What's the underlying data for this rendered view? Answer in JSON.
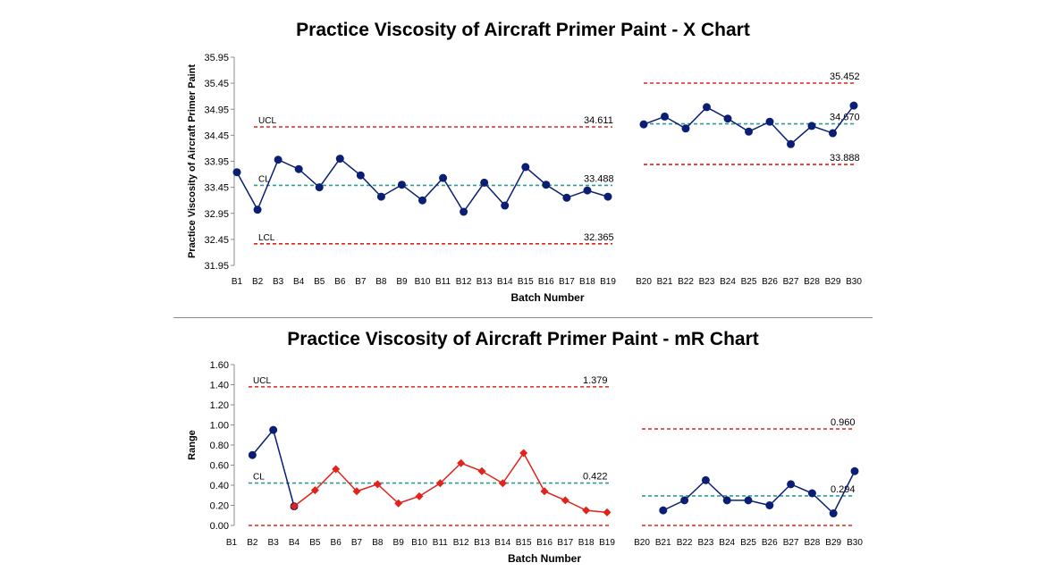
{
  "chart_data": [
    {
      "type": "line",
      "title": "Practice  Viscosity  of Aircraft Primer Paint  - X Chart",
      "xlabel": "Batch  Number",
      "ylabel": "Practice  Viscosity of Aircraft Primer Paint",
      "ylim": [
        31.95,
        35.95
      ],
      "yticks": [
        "31.95",
        "32.45",
        "32.95",
        "33.45",
        "33.95",
        "34.45",
        "34.95",
        "35.45",
        "35.95"
      ],
      "categories": [
        "B1",
        "B2",
        "B3",
        "B4",
        "B5",
        "B6",
        "B7",
        "B8",
        "B9",
        "B10",
        "B11",
        "B12",
        "B13",
        "B14",
        "B15",
        "B16",
        "B17",
        "B18",
        "B19",
        "B20",
        "B21",
        "B22",
        "B23",
        "B24",
        "B25",
        "B26",
        "B27",
        "B28",
        "B29",
        "B30"
      ],
      "series": [
        {
          "segment": 1,
          "x": [
            "B1",
            "B2",
            "B3",
            "B4",
            "B5",
            "B6",
            "B7",
            "B8",
            "B9",
            "B10",
            "B11",
            "B12",
            "B13",
            "B14",
            "B15",
            "B16",
            "B17",
            "B18",
            "B19"
          ],
          "values": [
            33.74,
            33.02,
            33.98,
            33.8,
            33.45,
            34.0,
            33.68,
            33.27,
            33.5,
            33.2,
            33.63,
            32.98,
            33.54,
            33.1,
            33.84,
            33.5,
            33.25,
            33.39,
            33.27
          ],
          "colors": [
            "#0a1f74"
          ],
          "marker": "circle"
        },
        {
          "segment": 2,
          "x": [
            "B20",
            "B21",
            "B22",
            "B23",
            "B24",
            "B25",
            "B26",
            "B27",
            "B28",
            "B29",
            "B30"
          ],
          "values": [
            34.66,
            34.81,
            34.58,
            34.99,
            34.77,
            34.52,
            34.71,
            34.28,
            34.63,
            34.49,
            35.02
          ],
          "colors": [
            "#0a1f74"
          ],
          "marker": "circle"
        }
      ],
      "control_lines": [
        {
          "segment": 1,
          "label": "UCL",
          "value": 34.611,
          "value_label": "34.611",
          "kind": "limit"
        },
        {
          "segment": 1,
          "label": "CL",
          "value": 33.488,
          "value_label": "33.488",
          "kind": "center"
        },
        {
          "segment": 1,
          "label": "LCL",
          "value": 32.365,
          "value_label": "32.365",
          "kind": "limit"
        },
        {
          "segment": 2,
          "label": "",
          "value": 35.452,
          "value_label": "35.452",
          "kind": "limit"
        },
        {
          "segment": 2,
          "label": "",
          "value": 34.67,
          "value_label": "34.670",
          "kind": "center"
        },
        {
          "segment": 2,
          "label": "",
          "value": 33.888,
          "value_label": "33.888",
          "kind": "limit"
        }
      ],
      "colors": {
        "line": "#0a1f74",
        "limit": "#e0241b",
        "center": "#2e9c94"
      }
    },
    {
      "type": "line",
      "title": "Practice  Viscosity  of Aircraft Primer Paint  - mR Chart",
      "xlabel": "Batch  Number",
      "ylabel": "Range",
      "ylim": [
        0,
        1.6
      ],
      "yticks": [
        "0.00",
        "0.20",
        "0.40",
        "0.60",
        "0.80",
        "1.00",
        "1.20",
        "1.40",
        "1.60"
      ],
      "categories": [
        "B1",
        "B2",
        "B3",
        "B4",
        "B5",
        "B6",
        "B7",
        "B8",
        "B9",
        "B10",
        "B11",
        "B12",
        "B13",
        "B14",
        "B15",
        "B16",
        "B17",
        "B18",
        "B19",
        "B20",
        "B21",
        "B22",
        "B23",
        "B24",
        "B25",
        "B26",
        "B27",
        "B28",
        "B29",
        "B30"
      ],
      "series": [
        {
          "segment": 1,
          "x": [
            "B2",
            "B3",
            "B4"
          ],
          "values": [
            0.7,
            0.95,
            0.19
          ],
          "colors": [
            "#0a1f74"
          ],
          "marker": "circle"
        },
        {
          "segment": 1,
          "x": [
            "B4",
            "B5",
            "B6",
            "B7",
            "B8",
            "B9",
            "B10",
            "B11",
            "B12",
            "B13",
            "B14",
            "B15",
            "B16",
            "B17",
            "B18",
            "B19"
          ],
          "values": [
            0.19,
            0.35,
            0.56,
            0.34,
            0.41,
            0.22,
            0.29,
            0.42,
            0.62,
            0.54,
            0.42,
            0.72,
            0.34,
            0.25,
            0.15,
            0.13
          ],
          "colors": [
            "#e0241b"
          ],
          "marker": "diamond"
        },
        {
          "segment": 2,
          "x": [
            "B21",
            "B22",
            "B23",
            "B24",
            "B25",
            "B26",
            "B27",
            "B28",
            "B29",
            "B30"
          ],
          "values": [
            0.15,
            0.25,
            0.45,
            0.25,
            0.25,
            0.2,
            0.41,
            0.32,
            0.12,
            0.54
          ],
          "colors": [
            "#0a1f74"
          ],
          "marker": "circle"
        }
      ],
      "control_lines": [
        {
          "segment": 1,
          "label": "UCL",
          "value": 1.379,
          "value_label": "1.379",
          "kind": "limit"
        },
        {
          "segment": 1,
          "label": "CL",
          "value": 0.422,
          "value_label": "0.422",
          "kind": "center"
        },
        {
          "segment": 1,
          "label": "",
          "value": 0.0,
          "value_label": "",
          "kind": "limit"
        },
        {
          "segment": 2,
          "label": "",
          "value": 0.96,
          "value_label": "0.960",
          "kind": "limit"
        },
        {
          "segment": 2,
          "label": "",
          "value": 0.294,
          "value_label": "0.294",
          "kind": "center"
        },
        {
          "segment": 2,
          "label": "",
          "value": 0.0,
          "value_label": "",
          "kind": "limit"
        }
      ],
      "colors": {
        "line": "#0a1f74",
        "limit": "#e0241b",
        "center": "#2e9c94"
      }
    }
  ]
}
